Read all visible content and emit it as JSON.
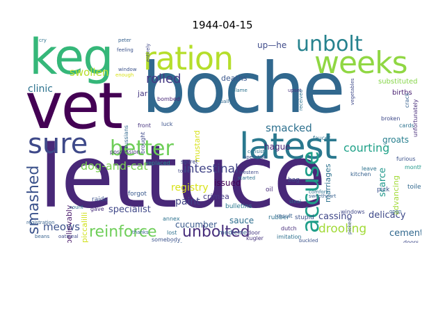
{
  "title": "1944-04-15",
  "words": [
    {
      "text": "lettuce",
      "color": "#482878"
    },
    {
      "text": "boche",
      "color": "#31688e"
    },
    {
      "text": "vet",
      "color": "#440154"
    },
    {
      "text": "keg",
      "color": "#35b779"
    },
    {
      "text": "latest",
      "color": "#2a788e"
    },
    {
      "text": "ration",
      "color": "#b5de2b"
    },
    {
      "text": "weeks",
      "color": "#90d743"
    },
    {
      "text": "sure",
      "color": "#3e4989"
    },
    {
      "text": "better",
      "color": "#6ece58"
    },
    {
      "text": "accuse",
      "color": "#1f9e89"
    },
    {
      "text": "unbolt",
      "color": "#26828e"
    },
    {
      "text": "reinforce",
      "color": "#6ece58"
    },
    {
      "text": "unbolted",
      "color": "#472d7b"
    },
    {
      "text": "smashed",
      "color": "#3b528b"
    },
    {
      "text": "dog-and-cat",
      "color": "#7ad151"
    },
    {
      "text": "rolled",
      "color": "#443983"
    },
    {
      "text": "intestinal",
      "color": "#414487"
    },
    {
      "text": "drooling",
      "color": "#a2da37"
    },
    {
      "text": "courting",
      "color": "#1fa188"
    },
    {
      "text": "smacked",
      "color": "#2d708e"
    },
    {
      "text": "swollen",
      "color": "#b5de2b"
    },
    {
      "text": "clinic",
      "color": "#2c728e"
    },
    {
      "text": "meows",
      "color": "#3b528b"
    },
    {
      "text": "paint",
      "color": "#414487"
    },
    {
      "text": "cucumber",
      "color": "#38588c"
    },
    {
      "text": "specialist",
      "color": "#3f4788"
    },
    {
      "text": "registry",
      "color": "#d8e219"
    },
    {
      "text": "unbelievably",
      "color": "#48186a"
    },
    {
      "text": "piccalilli",
      "color": "#d0e11c"
    },
    {
      "text": "sauce",
      "color": "#2e6e8e"
    },
    {
      "text": "delicacy",
      "color": "#3e4989"
    },
    {
      "text": "cement",
      "color": "#31688e"
    },
    {
      "text": "scarce",
      "color": "#1f988b"
    },
    {
      "text": "cassino",
      "color": "#3f4788"
    },
    {
      "text": "marriages",
      "color": "#2c728e"
    },
    {
      "text": "advancing",
      "color": "#a2da37"
    },
    {
      "text": "groats",
      "color": "#277f8e"
    },
    {
      "text": "hague",
      "color": "#482475"
    },
    {
      "text": "issued",
      "color": "#440154"
    },
    {
      "text": "crimea",
      "color": "#443983"
    },
    {
      "text": "mustard",
      "color": "#d8e219"
    },
    {
      "text": "up—he",
      "color": "#3e4a89"
    },
    {
      "text": "deaths",
      "color": "#39568c"
    },
    {
      "text": "jar",
      "color": "#453781"
    },
    {
      "text": "substituted",
      "color": "#86d549"
    },
    {
      "text": "births",
      "color": "#481f70"
    },
    {
      "text": "unfortunately",
      "color": "#472c7a"
    },
    {
      "text": "raids",
      "color": "#3b528b"
    },
    {
      "text": "forgot",
      "color": "#38588c"
    },
    {
      "text": "bulletins",
      "color": "#2a788e"
    },
    {
      "text": "rubber",
      "color": "#2d708e"
    },
    {
      "text": "stupid",
      "color": "#3b528b"
    },
    {
      "text": "toilet",
      "color": "#31688e"
    },
    {
      "text": "pick",
      "color": "#3b528b"
    },
    {
      "text": "medicine",
      "color": "#35608d"
    },
    {
      "text": "oil",
      "color": "#472d7b"
    },
    {
      "text": "bag",
      "color": "#3e4989"
    },
    {
      "text": "leave",
      "color": "#2c728e"
    },
    {
      "text": "front",
      "color": "#46337e"
    },
    {
      "text": "luck",
      "color": "#3b528b"
    },
    {
      "text": "lost",
      "color": "#2d708e"
    },
    {
      "text": "nose",
      "color": "#35608d"
    },
    {
      "text": "replaced",
      "color": "#238a8d"
    },
    {
      "text": "secret",
      "color": "#3e4989"
    },
    {
      "text": "gave",
      "color": "#472d7b"
    },
    {
      "text": "annex",
      "color": "#2c728e"
    },
    {
      "text": "somebody",
      "color": "#3b528b"
    },
    {
      "text": "kugler",
      "color": "#46337e"
    },
    {
      "text": "door",
      "color": "#453781"
    },
    {
      "text": "doors",
      "color": "#3e4989"
    },
    {
      "text": "imitation",
      "color": "#2d708e"
    },
    {
      "text": "dutch",
      "color": "#472d7b"
    },
    {
      "text": "result",
      "color": "#35608d"
    },
    {
      "text": "windows",
      "color": "#3f4788"
    },
    {
      "text": "kitchen",
      "color": "#35608d"
    },
    {
      "text": "faucet",
      "color": "#2c728e"
    },
    {
      "text": "month",
      "color": "#1f988b"
    },
    {
      "text": "furious",
      "color": "#3b528b"
    },
    {
      "text": "broken",
      "color": "#3e4989"
    },
    {
      "text": "cards",
      "color": "#2c728e"
    },
    {
      "text": "crack",
      "color": "#35608d"
    },
    {
      "text": "possession",
      "color": "#46337e"
    },
    {
      "text": "russians",
      "color": "#31688e"
    },
    {
      "text": "brought",
      "color": "#3e4989"
    },
    {
      "text": "bombed",
      "color": "#482878"
    },
    {
      "text": "feeling",
      "color": "#3b528b"
    },
    {
      "text": "peter",
      "color": "#35608d"
    },
    {
      "text": "cry",
      "color": "#2c728e"
    },
    {
      "text": "entirely",
      "color": "#3f4788"
    },
    {
      "text": "window",
      "color": "#3b528b"
    },
    {
      "text": "registration",
      "color": "#35608d"
    },
    {
      "text": "count",
      "color": "#2d708e"
    },
    {
      "text": "oatmeal",
      "color": "#3e4989"
    },
    {
      "text": "beans",
      "color": "#35608d"
    },
    {
      "text": "equally",
      "color": "#31688e"
    },
    {
      "text": "upset",
      "color": "#46337e"
    },
    {
      "text": "received",
      "color": "#2c728e"
    },
    {
      "text": "operation",
      "color": "#3b528b"
    },
    {
      "text": "western",
      "color": "#3e4989"
    },
    {
      "text": "started",
      "color": "#2d708e"
    },
    {
      "text": "sweetheart",
      "color": "#35608d"
    },
    {
      "text": "towel",
      "color": "#3f4788"
    },
    {
      "text": "consist",
      "color": "#2c728e"
    },
    {
      "text": "picked",
      "color": "#3b528b"
    },
    {
      "text": "open",
      "color": "#35608d"
    },
    {
      "text": "comfort",
      "color": "#2d708e"
    },
    {
      "text": "vegetables",
      "color": "#3e4989"
    },
    {
      "text": "blame",
      "color": "#2c728e"
    },
    {
      "text": "thanks",
      "color": "#35608d"
    },
    {
      "text": "enough",
      "color": "#d8e219"
    },
    {
      "text": "steal",
      "color": "#2d708e"
    },
    {
      "text": "buckled",
      "color": "#3b528b"
    }
  ]
}
